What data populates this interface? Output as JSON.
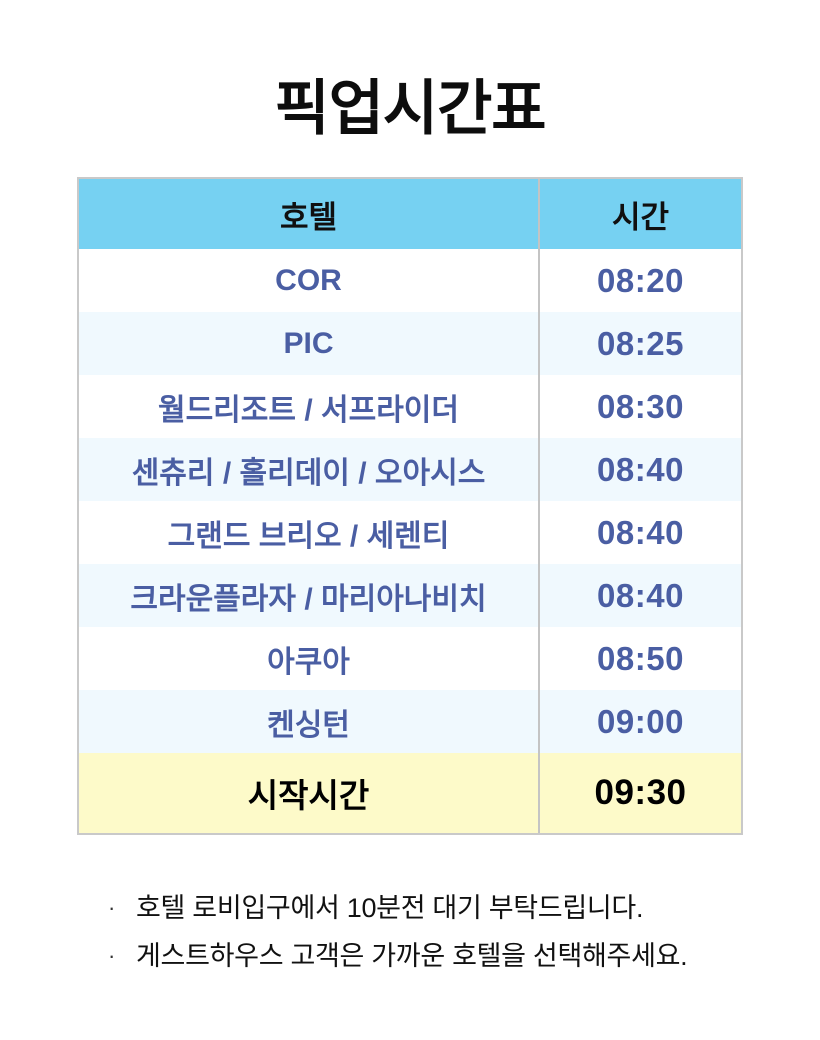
{
  "title": "픽업시간표",
  "table": {
    "headers": {
      "hotel": "호텔",
      "time": "시간"
    },
    "rows": [
      {
        "hotel": "COR",
        "time": "08:20"
      },
      {
        "hotel": "PIC",
        "time": "08:25"
      },
      {
        "hotel": "월드리조트 / 서프라이더",
        "time": "08:30"
      },
      {
        "hotel": "센츄리 / 홀리데이 / 오아시스",
        "time": "08:40"
      },
      {
        "hotel": "그랜드 브리오 / 세렌티",
        "time": "08:40"
      },
      {
        "hotel": "크라운플라자 / 마리아나비치",
        "time": "08:40"
      },
      {
        "hotel": "아쿠아",
        "time": "08:50"
      },
      {
        "hotel": "켄싱턴",
        "time": "09:00"
      }
    ],
    "summary_row": {
      "hotel": "시작시간",
      "time": "09:30"
    }
  },
  "notes": {
    "bullet": "·",
    "items": [
      "호텔 로비입구에서 10분전 대기 부탁드립니다.",
      "게스트하우스 고객은 가까운 호텔을 선택해주세요."
    ]
  },
  "colors": {
    "header_bg": "#76d1f2",
    "stripe_bg": "#f0f9fe",
    "highlight_bg": "#fdfac9",
    "row_text": "#4a5ea3",
    "border": "#c9c9c9",
    "heading_text": "#0d0d0d"
  }
}
